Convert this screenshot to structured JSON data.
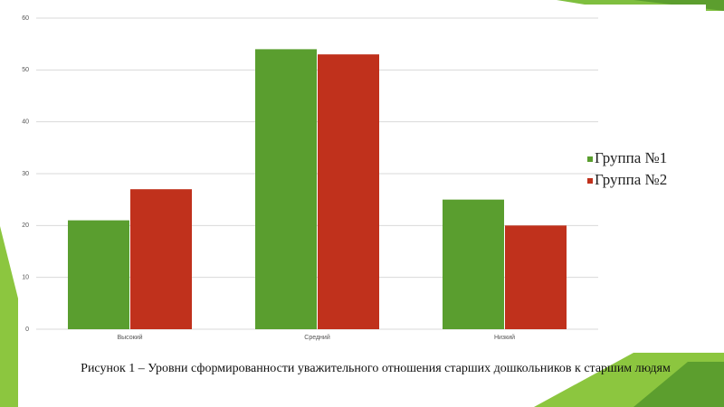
{
  "chart_data": {
    "type": "bar",
    "caption": "Рисунок 1 – Уровни сформированности уважительного отношения старших дошкольников к старшим людям",
    "categories": [
      "Высокий",
      "Средний",
      "Низкий"
    ],
    "series": [
      {
        "name": "Группа №1",
        "color": "#5a9e2f",
        "values": [
          21,
          54,
          25
        ]
      },
      {
        "name": "Группа №2",
        "color": "#c0311c",
        "values": [
          27,
          53,
          20
        ]
      }
    ],
    "ylim": [
      0,
      60
    ],
    "yticks": [
      0,
      10,
      20,
      30,
      40,
      50,
      60
    ],
    "grid": true,
    "legend": "right"
  }
}
